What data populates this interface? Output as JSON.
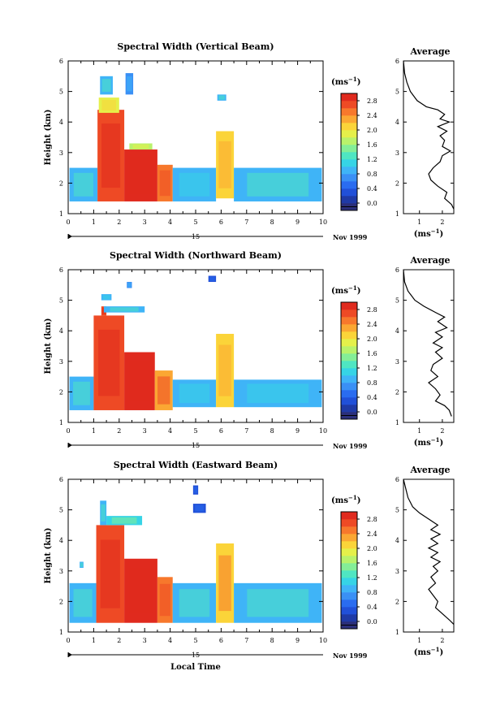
{
  "figure": {
    "x_label": "Local Time",
    "day_label": "15",
    "date_suffix": "Nov 1999"
  },
  "colorbar": {
    "unit_base": "(ms",
    "unit_exp": "−1",
    "unit_close": ")",
    "colors": [
      "#2b2f7a",
      "#1f3aa6",
      "#2150d8",
      "#2a6cf0",
      "#3a90f5",
      "#3fb4f7",
      "#36d4e6",
      "#4fe6c2",
      "#84ee97",
      "#b9f26b",
      "#e5f04a",
      "#fbd439",
      "#fba733",
      "#f7782c",
      "#ee4a25",
      "#e02a1e"
    ]
  },
  "chart_data": [
    {
      "type": "heatmap",
      "title": "Spectral Width (Vertical Beam)",
      "ylabel": "Height (km)",
      "xlim": [
        0,
        10
      ],
      "ylim": [
        1,
        6
      ],
      "xticks": [
        "0",
        "1",
        "2",
        "3",
        "4",
        "5",
        "6",
        "7",
        "8",
        "9",
        "10"
      ],
      "yticks": [
        "1",
        "2",
        "3",
        "4",
        "5",
        "6"
      ],
      "colorbar_ticks": [
        "0.0",
        "0.4",
        "0.8",
        "1.2",
        "1.6",
        "2.0",
        "2.4",
        "2.8"
      ],
      "colorbar_range": [
        0,
        3.2
      ],
      "regions": [
        {
          "x0": 0.05,
          "x1": 1.15,
          "y0": 1.4,
          "y1": 2.5,
          "v": 1.2
        },
        {
          "x0": 1.15,
          "x1": 2.2,
          "y0": 1.4,
          "y1": 4.4,
          "v": 2.9
        },
        {
          "x0": 1.2,
          "x1": 2.0,
          "y0": 4.3,
          "y1": 4.8,
          "v": 2.0
        },
        {
          "x0": 1.25,
          "x1": 1.75,
          "y0": 4.9,
          "y1": 5.5,
          "v": 1.2
        },
        {
          "x0": 2.25,
          "x1": 2.55,
          "y0": 4.9,
          "y1": 5.6,
          "v": 0.8
        },
        {
          "x0": 2.2,
          "x1": 3.5,
          "y0": 1.4,
          "y1": 3.1,
          "v": 3.0
        },
        {
          "x0": 2.4,
          "x1": 3.3,
          "y0": 3.1,
          "y1": 3.3,
          "v": 1.8
        },
        {
          "x0": 3.5,
          "x1": 4.1,
          "y0": 1.4,
          "y1": 2.6,
          "v": 2.6
        },
        {
          "x0": 4.1,
          "x1": 5.8,
          "y0": 1.4,
          "y1": 2.5,
          "v": 1.0
        },
        {
          "x0": 5.8,
          "x1": 6.5,
          "y0": 1.5,
          "y1": 3.7,
          "v": 2.2
        },
        {
          "x0": 5.85,
          "x1": 6.2,
          "y0": 4.7,
          "y1": 4.9,
          "v": 1.2
        },
        {
          "x0": 6.5,
          "x1": 9.95,
          "y0": 1.4,
          "y1": 2.5,
          "v": 1.1
        }
      ],
      "average": {
        "title": "Average",
        "xticks": [
          "1",
          "2"
        ],
        "xlim": [
          0.3,
          2.5
        ],
        "unit": "(ms",
        "points": [
          [
            0.3,
            6.0
          ],
          [
            0.35,
            5.6
          ],
          [
            0.45,
            5.3
          ],
          [
            0.6,
            5.0
          ],
          [
            0.9,
            4.7
          ],
          [
            1.3,
            4.5
          ],
          [
            1.8,
            4.4
          ],
          [
            2.1,
            4.25
          ],
          [
            1.9,
            4.1
          ],
          [
            2.3,
            4.0
          ],
          [
            1.8,
            3.85
          ],
          [
            2.2,
            3.7
          ],
          [
            1.9,
            3.55
          ],
          [
            2.1,
            3.4
          ],
          [
            2.0,
            3.2
          ],
          [
            2.35,
            3.05
          ],
          [
            2.0,
            2.9
          ],
          [
            1.9,
            2.7
          ],
          [
            1.6,
            2.5
          ],
          [
            1.4,
            2.3
          ],
          [
            1.5,
            2.1
          ],
          [
            1.8,
            1.9
          ],
          [
            2.2,
            1.7
          ],
          [
            2.1,
            1.5
          ],
          [
            2.4,
            1.3
          ],
          [
            2.5,
            1.15
          ]
        ]
      }
    },
    {
      "type": "heatmap",
      "title": "Spectral Width (Northward Beam)",
      "ylabel": "Height (km)",
      "xlim": [
        0,
        10
      ],
      "ylim": [
        1,
        6
      ],
      "xticks": [
        "0",
        "1",
        "2",
        "3",
        "4",
        "5",
        "6",
        "7",
        "8",
        "9",
        "10"
      ],
      "yticks": [
        "1",
        "2",
        "3",
        "4",
        "5",
        "6"
      ],
      "colorbar_ticks": [
        "0.0",
        "0.4",
        "0.8",
        "1.2",
        "1.6",
        "2.0",
        "2.4",
        "2.8"
      ],
      "colorbar_range": [
        0,
        3.2
      ],
      "regions": [
        {
          "x0": 0.05,
          "x1": 1.0,
          "y0": 1.4,
          "y1": 2.5,
          "v": 1.2
        },
        {
          "x0": 1.0,
          "x1": 2.2,
          "y0": 1.4,
          "y1": 4.5,
          "v": 2.9
        },
        {
          "x0": 1.3,
          "x1": 1.5,
          "y0": 4.5,
          "y1": 4.8,
          "v": 2.9
        },
        {
          "x0": 1.4,
          "x1": 3.0,
          "y0": 4.6,
          "y1": 4.8,
          "v": 1.2
        },
        {
          "x0": 1.3,
          "x1": 1.7,
          "y0": 5.0,
          "y1": 5.2,
          "v": 1.0
        },
        {
          "x0": 2.2,
          "x1": 3.4,
          "y0": 1.4,
          "y1": 3.3,
          "v": 3.0
        },
        {
          "x0": 3.4,
          "x1": 4.1,
          "y0": 1.4,
          "y1": 2.7,
          "v": 2.5
        },
        {
          "x0": 4.1,
          "x1": 5.8,
          "y0": 1.5,
          "y1": 2.4,
          "v": 1.0
        },
        {
          "x0": 5.8,
          "x1": 6.5,
          "y0": 1.5,
          "y1": 3.9,
          "v": 2.2
        },
        {
          "x0": 6.5,
          "x1": 9.95,
          "y0": 1.5,
          "y1": 2.4,
          "v": 1.0
        },
        {
          "x0": 2.3,
          "x1": 2.5,
          "y0": 5.4,
          "y1": 5.6,
          "v": 0.8
        },
        {
          "x0": 5.5,
          "x1": 5.8,
          "y0": 5.6,
          "y1": 5.8,
          "v": 0.4
        }
      ],
      "average": {
        "title": "Average",
        "xticks": [
          "1",
          "2"
        ],
        "xlim": [
          0.3,
          2.5
        ],
        "unit": "(ms",
        "points": [
          [
            0.3,
            6.0
          ],
          [
            0.35,
            5.6
          ],
          [
            0.5,
            5.3
          ],
          [
            0.8,
            5.0
          ],
          [
            1.2,
            4.8
          ],
          [
            1.7,
            4.6
          ],
          [
            2.1,
            4.45
          ],
          [
            1.8,
            4.3
          ],
          [
            2.2,
            4.1
          ],
          [
            1.7,
            3.95
          ],
          [
            2.0,
            3.8
          ],
          [
            1.6,
            3.6
          ],
          [
            2.0,
            3.45
          ],
          [
            1.7,
            3.3
          ],
          [
            2.0,
            3.1
          ],
          [
            1.6,
            2.9
          ],
          [
            1.5,
            2.7
          ],
          [
            1.8,
            2.5
          ],
          [
            1.4,
            2.3
          ],
          [
            1.7,
            2.1
          ],
          [
            1.9,
            1.9
          ],
          [
            1.7,
            1.7
          ],
          [
            2.1,
            1.55
          ],
          [
            2.3,
            1.4
          ],
          [
            2.4,
            1.2
          ]
        ]
      }
    },
    {
      "type": "heatmap",
      "title": "Spectral Width (Eastward Beam)",
      "ylabel": "Height (km)",
      "xlim": [
        0,
        10
      ],
      "ylim": [
        1,
        6
      ],
      "xticks": [
        "0",
        "1",
        "2",
        "3",
        "4",
        "5",
        "6",
        "7",
        "8",
        "9",
        "10"
      ],
      "yticks": [
        "1",
        "2",
        "3",
        "4",
        "5",
        "6"
      ],
      "colorbar_ticks": [
        "0.0",
        "0.4",
        "0.8",
        "1.2",
        "1.6",
        "2.0",
        "2.4",
        "2.8"
      ],
      "colorbar_range": [
        0,
        3.2
      ],
      "regions": [
        {
          "x0": 0.05,
          "x1": 1.1,
          "y0": 1.3,
          "y1": 2.6,
          "v": 1.2
        },
        {
          "x0": 1.1,
          "x1": 2.2,
          "y0": 1.3,
          "y1": 4.5,
          "v": 2.9
        },
        {
          "x0": 1.25,
          "x1": 1.5,
          "y0": 4.5,
          "y1": 5.3,
          "v": 1.2
        },
        {
          "x0": 1.5,
          "x1": 2.9,
          "y0": 4.5,
          "y1": 4.8,
          "v": 1.3
        },
        {
          "x0": 2.2,
          "x1": 3.5,
          "y0": 1.3,
          "y1": 3.4,
          "v": 3.0
        },
        {
          "x0": 3.5,
          "x1": 4.1,
          "y0": 1.3,
          "y1": 2.8,
          "v": 2.6
        },
        {
          "x0": 4.1,
          "x1": 5.8,
          "y0": 1.3,
          "y1": 2.6,
          "v": 1.1
        },
        {
          "x0": 5.8,
          "x1": 6.5,
          "y0": 1.3,
          "y1": 3.9,
          "v": 2.3
        },
        {
          "x0": 6.5,
          "x1": 9.95,
          "y0": 1.3,
          "y1": 2.6,
          "v": 1.2
        },
        {
          "x0": 4.9,
          "x1": 5.4,
          "y0": 4.9,
          "y1": 5.2,
          "v": 0.4
        },
        {
          "x0": 4.9,
          "x1": 5.1,
          "y0": 5.5,
          "y1": 5.8,
          "v": 0.4
        },
        {
          "x0": 0.45,
          "x1": 0.6,
          "y0": 3.1,
          "y1": 3.3,
          "v": 1.2
        }
      ],
      "average": {
        "title": "Average",
        "xticks": [
          "1",
          "2"
        ],
        "xlim": [
          0.3,
          2.5
        ],
        "unit": "(ms",
        "points": [
          [
            0.3,
            6.0
          ],
          [
            0.4,
            5.7
          ],
          [
            0.5,
            5.4
          ],
          [
            0.7,
            5.1
          ],
          [
            1.0,
            4.9
          ],
          [
            1.4,
            4.7
          ],
          [
            1.8,
            4.5
          ],
          [
            1.5,
            4.35
          ],
          [
            1.9,
            4.2
          ],
          [
            1.5,
            4.05
          ],
          [
            1.8,
            3.9
          ],
          [
            1.4,
            3.75
          ],
          [
            1.8,
            3.6
          ],
          [
            1.5,
            3.45
          ],
          [
            1.9,
            3.3
          ],
          [
            1.6,
            3.15
          ],
          [
            1.8,
            3.0
          ],
          [
            1.5,
            2.8
          ],
          [
            1.7,
            2.6
          ],
          [
            1.4,
            2.4
          ],
          [
            1.6,
            2.2
          ],
          [
            1.8,
            2.0
          ],
          [
            1.7,
            1.8
          ],
          [
            2.0,
            1.6
          ],
          [
            2.3,
            1.4
          ],
          [
            2.5,
            1.25
          ]
        ]
      }
    }
  ]
}
